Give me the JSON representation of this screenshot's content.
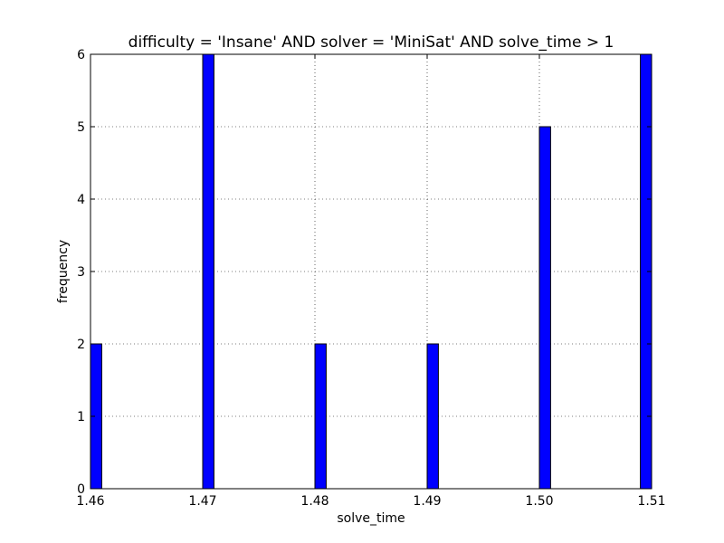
{
  "chart_data": {
    "type": "bar",
    "title": "difficulty = 'Insane' AND solver = 'MiniSat' AND solve_time > 1",
    "xlabel": "solve_time",
    "ylabel": "frequency",
    "xlim": [
      1.46,
      1.51
    ],
    "ylim": [
      0,
      6
    ],
    "x_ticks": [
      "1.46",
      "1.47",
      "1.48",
      "1.49",
      "1.50",
      "1.51"
    ],
    "y_ticks": [
      "0",
      "1",
      "2",
      "3",
      "4",
      "5",
      "6"
    ],
    "grid": true,
    "bar_color": "#0000ff",
    "bars": [
      {
        "x_start": 1.46,
        "x_end": 1.461,
        "value": 2
      },
      {
        "x_start": 1.47,
        "x_end": 1.471,
        "value": 6
      },
      {
        "x_start": 1.48,
        "x_end": 1.481,
        "value": 2
      },
      {
        "x_start": 1.49,
        "x_end": 1.491,
        "value": 2
      },
      {
        "x_start": 1.5,
        "x_end": 1.501,
        "value": 5
      },
      {
        "x_start": 1.509,
        "x_end": 1.51,
        "value": 6
      }
    ]
  }
}
